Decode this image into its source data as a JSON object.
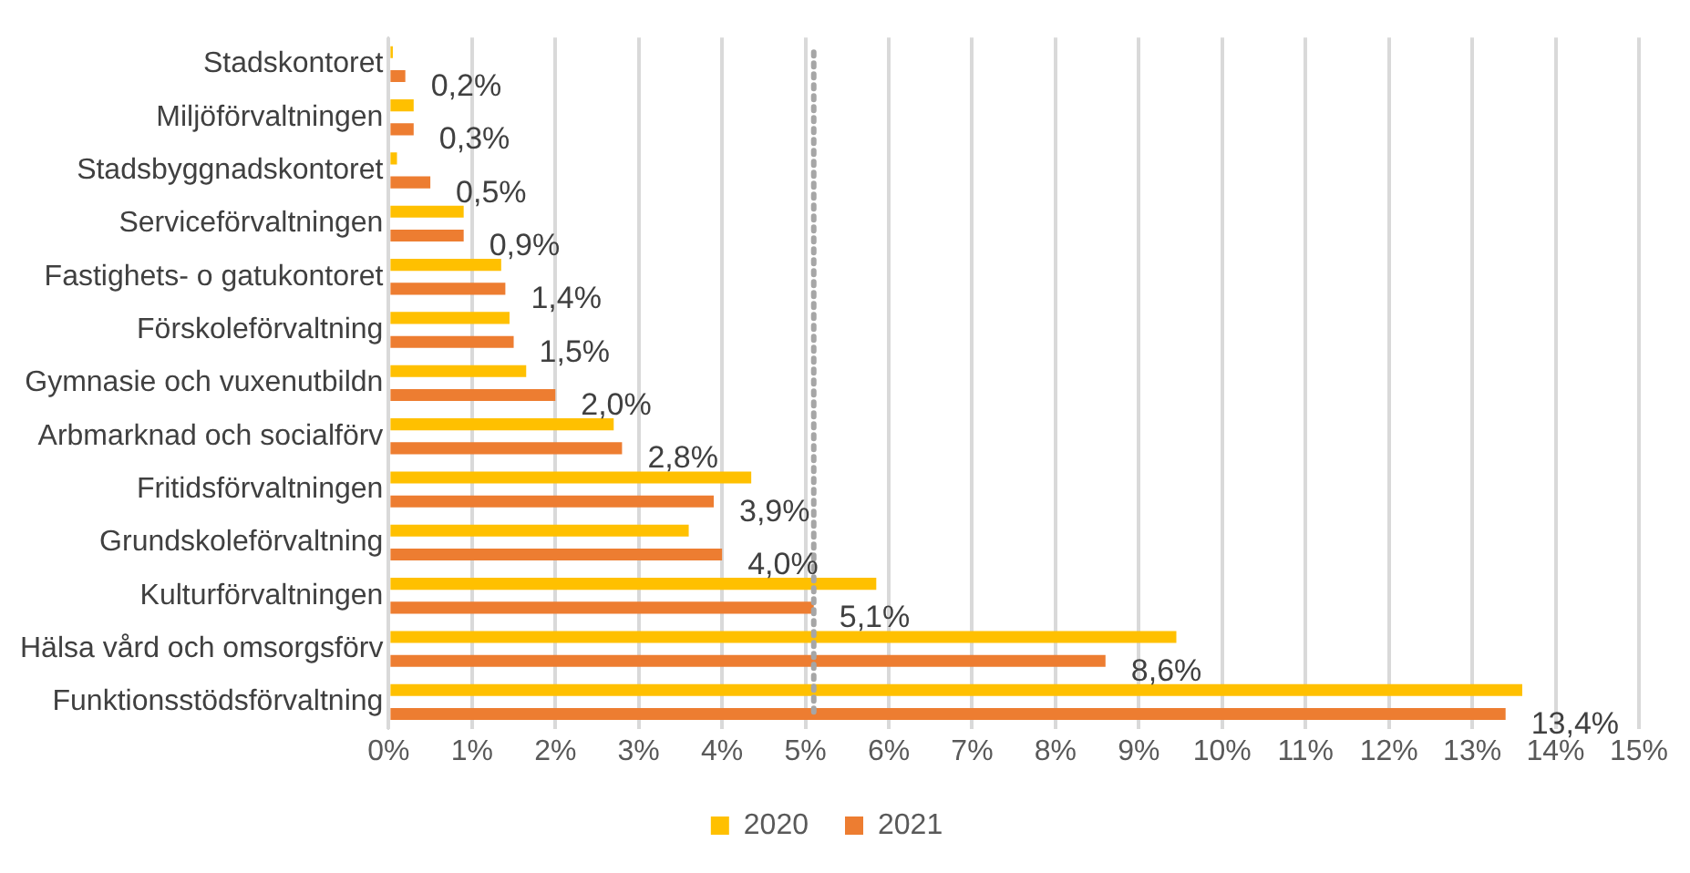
{
  "chart_data": {
    "type": "bar",
    "orientation": "horizontal",
    "categories": [
      "Stadskontoret",
      "Miljöförvaltningen",
      "Stadsbyggnadskontoret",
      "Serviceförvaltningen",
      "Fastighets- o gatukontoret",
      "Förskoleförvaltning",
      "Gymnasie och vuxenutbildn",
      "Arbmarknad och socialförv",
      "Fritidsförvaltningen",
      "Grundskoleförvaltning",
      "Kulturförvaltningen",
      "Hälsa vård och omsorgsförv",
      "Funktionsstödsförvaltning"
    ],
    "series": [
      {
        "name": "2020",
        "color": "#ffc000",
        "values": [
          0.05,
          0.3,
          0.1,
          0.9,
          1.35,
          1.45,
          1.65,
          2.7,
          4.35,
          3.6,
          5.85,
          9.45,
          13.6
        ]
      },
      {
        "name": "2021",
        "color": "#ed7d31",
        "values": [
          0.2,
          0.3,
          0.5,
          0.9,
          1.4,
          1.5,
          2.0,
          2.8,
          3.9,
          4.0,
          5.1,
          8.6,
          13.4
        ],
        "value_labels": [
          "0,2%",
          "0,3%",
          "0,5%",
          "0,9%",
          "1,4%",
          "1,5%",
          "2,0%",
          "2,8%",
          "3,9%",
          "4,0%",
          "5,1%",
          "8,6%",
          "13,4%"
        ]
      }
    ],
    "xlim": [
      0,
      15
    ],
    "xticks": [
      {
        "value": 0,
        "label": "0%"
      },
      {
        "value": 1,
        "label": "1%"
      },
      {
        "value": 2,
        "label": "2%"
      },
      {
        "value": 3,
        "label": "3%"
      },
      {
        "value": 4,
        "label": "4%"
      },
      {
        "value": 5,
        "label": "5%"
      },
      {
        "value": 6,
        "label": "6%"
      },
      {
        "value": 7,
        "label": "7%"
      },
      {
        "value": 8,
        "label": "8%"
      },
      {
        "value": 9,
        "label": "9%"
      },
      {
        "value": 10,
        "label": "10%"
      },
      {
        "value": 11,
        "label": "11%"
      },
      {
        "value": 12,
        "label": "12%"
      },
      {
        "value": 13,
        "label": "13%"
      },
      {
        "value": 14,
        "label": "14%"
      },
      {
        "value": 15,
        "label": "15%"
      }
    ],
    "ref_lines": [
      {
        "axis": "x",
        "value": 5.1,
        "color": "#a6a6a6",
        "line_style": "dotted"
      }
    ],
    "grid": "x",
    "legend": "bottom"
  }
}
